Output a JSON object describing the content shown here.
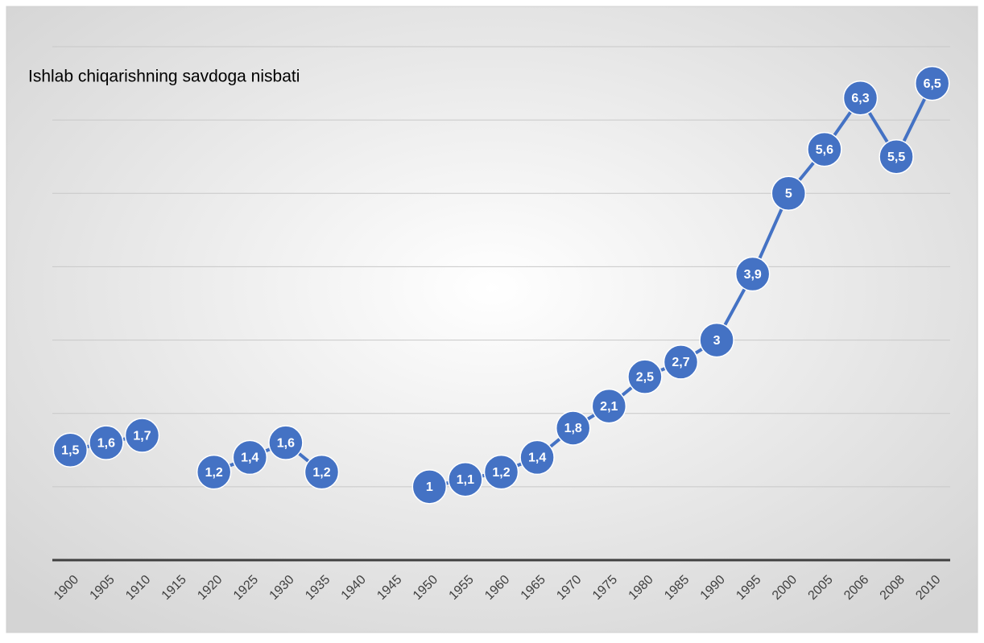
{
  "chart_data": {
    "type": "line",
    "title": "Ishlab chiqarishning savdoga nisbati",
    "categories": [
      "1900",
      "1905",
      "1910",
      "1915",
      "1920",
      "1925",
      "1930",
      "1935",
      "1940",
      "1945",
      "1950",
      "1955",
      "1960",
      "1965",
      "1970",
      "1975",
      "1980",
      "1985",
      "1990",
      "1995",
      "2000",
      "2005",
      "2006",
      "2008",
      "2010"
    ],
    "series": [
      {
        "color": "#4472c4",
        "values": [
          1.5,
          1.6,
          1.7,
          null,
          1.2,
          1.4,
          1.6,
          1.2,
          null,
          null,
          1,
          1.1,
          1.2,
          1.4,
          1.8,
          2.1,
          2.5,
          2.7,
          3,
          3.9,
          5,
          5.6,
          6.3,
          5.5,
          6.5
        ],
        "value_labels": [
          "1,5",
          "1,6",
          "1,7",
          null,
          "1,2",
          "1,4",
          "1,6",
          "1,2",
          null,
          null,
          "1",
          "1,1",
          "1,2",
          "1,4",
          "1,8",
          "2,1",
          "2,5",
          "2,7",
          "3",
          "3,9",
          "5",
          "5,6",
          "6,3",
          "5,5",
          "6,5"
        ]
      }
    ],
    "ylim": [
      0,
      7
    ],
    "yticks": [
      0,
      1,
      2,
      3,
      4,
      5,
      6,
      7
    ],
    "grid": true
  }
}
